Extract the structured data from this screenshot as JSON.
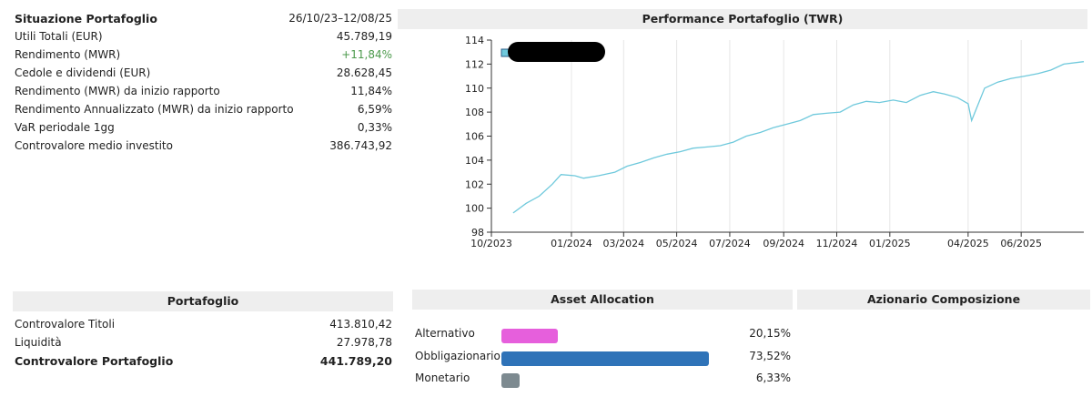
{
  "summary": {
    "title": "Situazione Portafoglio",
    "period": "26/10/23–12/08/25",
    "rows": [
      {
        "label": "Utili Totali (EUR)",
        "value": "45.789,19"
      },
      {
        "label": "Rendimento (MWR)",
        "value": "+11,84%"
      },
      {
        "label": "Cedole e dividendi (EUR)",
        "value": "28.628,45"
      },
      {
        "label": "Rendimento (MWR) da inizio rapporto",
        "value": "11,84%"
      },
      {
        "label": "Rendimento Annualizzato (MWR) da inizio rapporto",
        "value": "6,59%"
      },
      {
        "label": "VaR periodale 1gg",
        "value": "0,33%"
      },
      {
        "label": "Controvalore medio investito",
        "value": "386.743,92"
      }
    ]
  },
  "chart_panel": {
    "title": "Performance Portafoglio (TWR)"
  },
  "chart_data": {
    "type": "line",
    "title": "Performance Portafoglio (TWR)",
    "x_tick_labels": [
      "10/2023",
      "01/2024",
      "03/2024",
      "05/2024",
      "07/2024",
      "09/2024",
      "11/2024",
      "01/2025",
      "04/2025",
      "06/2025"
    ],
    "y_tick_labels": [
      "98",
      "100",
      "102",
      "104",
      "106",
      "108",
      "110",
      "112",
      "114"
    ],
    "ylim": [
      98,
      114
    ],
    "grid": "vertical",
    "legend": "top-left (label redacted)",
    "line_color": "#6fc9dc",
    "series": [
      {
        "x": [
          "2023-10-26",
          "2023-11-10",
          "2023-11-25",
          "2023-12-10",
          "2023-12-20",
          "2024-01-05",
          "2024-01-15",
          "2024-02-01",
          "2024-02-20",
          "2024-03-05",
          "2024-03-20",
          "2024-04-05",
          "2024-04-20",
          "2024-05-05",
          "2024-05-20",
          "2024-06-05",
          "2024-06-20",
          "2024-07-05",
          "2024-07-20",
          "2024-08-05",
          "2024-08-20",
          "2024-09-05",
          "2024-09-20",
          "2024-10-05",
          "2024-10-20",
          "2024-11-05",
          "2024-11-20",
          "2024-12-05",
          "2024-12-20",
          "2025-01-05",
          "2025-01-20",
          "2025-02-05",
          "2025-02-20",
          "2025-03-05",
          "2025-03-20",
          "2025-04-01",
          "2025-04-05",
          "2025-04-10",
          "2025-04-20",
          "2025-05-05",
          "2025-05-20",
          "2025-06-05",
          "2025-06-20",
          "2025-07-05",
          "2025-07-20",
          "2025-08-12"
        ],
        "values": [
          99.6,
          100.4,
          101.0,
          102.0,
          102.8,
          102.7,
          102.5,
          102.7,
          103.0,
          103.5,
          103.8,
          104.2,
          104.5,
          104.7,
          105.0,
          105.1,
          105.2,
          105.5,
          106.0,
          106.3,
          106.7,
          107.0,
          107.3,
          107.8,
          107.9,
          108.0,
          108.6,
          108.9,
          108.8,
          109.0,
          108.8,
          109.4,
          109.7,
          109.5,
          109.2,
          108.7,
          107.3,
          108.2,
          110.0,
          110.5,
          110.8,
          111.0,
          111.2,
          111.5,
          112.0,
          112.2
        ]
      }
    ]
  },
  "portfolio": {
    "title": "Portafoglio",
    "rows": [
      {
        "label": "Controvalore Titoli",
        "value": "413.810,42"
      },
      {
        "label": "Liquidità",
        "value": "27.978,78"
      },
      {
        "label": "Controvalore Portafoglio",
        "value": "441.789,20"
      }
    ]
  },
  "asset_allocation": {
    "title": "Asset Allocation",
    "items": [
      {
        "label": "Alternativo",
        "value": "20,15%",
        "fraction": 0.2015,
        "color": "#e65fdc"
      },
      {
        "label": "Obbligazionario",
        "value": "73,52%",
        "fraction": 0.7352,
        "color": "#2f73b8"
      },
      {
        "label": "Monetario",
        "value": "6,33%",
        "fraction": 0.0633,
        "color": "#7d8a90"
      }
    ]
  },
  "equity_composition": {
    "title": "Azionario Composizione"
  }
}
